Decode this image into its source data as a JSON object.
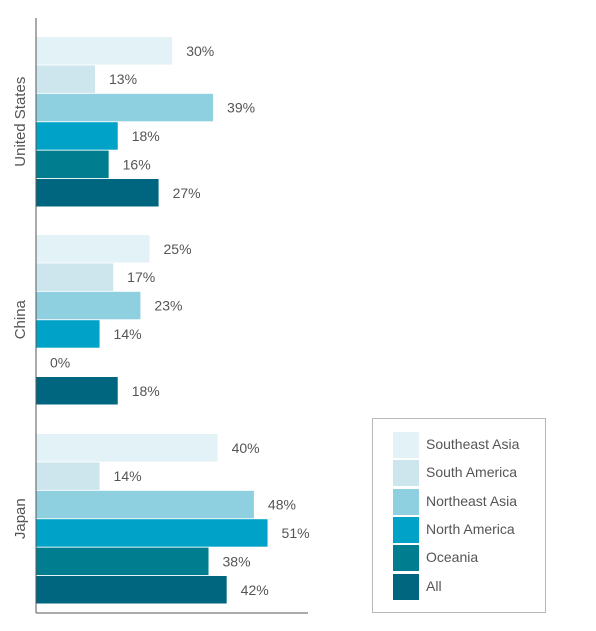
{
  "chart_data": {
    "type": "bar",
    "orientation": "horizontal",
    "categories": [
      "United States",
      "China",
      "Japan"
    ],
    "series": [
      {
        "name": "Southeast Asia",
        "color": "#e3f2f7",
        "values": [
          30,
          25,
          40
        ],
        "labels": [
          "30%",
          "25%",
          "40%"
        ]
      },
      {
        "name": "South America",
        "color": "#cde6ee",
        "values": [
          13,
          17,
          14
        ],
        "labels": [
          "13%",
          "17%",
          "14%"
        ]
      },
      {
        "name": "Northeast Asia",
        "color": "#8fd0e0",
        "values": [
          39,
          23,
          48
        ],
        "labels": [
          "39%",
          "23%",
          "48%"
        ]
      },
      {
        "name": "North America",
        "color": "#00a2c8",
        "values": [
          18,
          14,
          51
        ],
        "labels": [
          "18%",
          "14%",
          "51%"
        ]
      },
      {
        "name": "Oceania",
        "color": "#007d8f",
        "values": [
          16,
          0,
          38
        ],
        "labels": [
          "16%",
          "0%",
          "38%"
        ]
      },
      {
        "name": "All",
        "color": "#006680",
        "values": [
          27,
          18,
          42
        ],
        "labels": [
          "27%",
          "18%",
          "42%"
        ]
      }
    ],
    "xlim": [
      0,
      60
    ],
    "grid": false,
    "legend": "bottom-right"
  }
}
